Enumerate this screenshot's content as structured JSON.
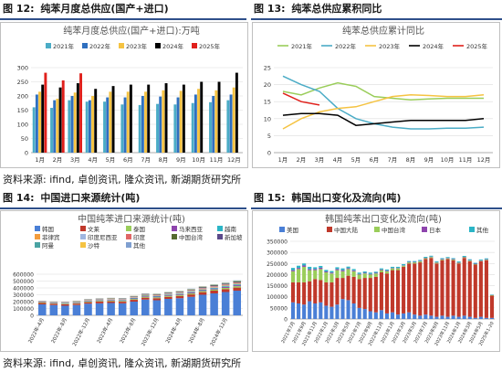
{
  "panels": {
    "p12": {
      "label": "图 12:",
      "title": "纯苯月度总供应(国产+进口)"
    },
    "p13": {
      "label": "图 13:",
      "title": "纯苯总供应累积同比"
    },
    "p14": {
      "label": "图 14:",
      "title": "中国进口来源统计(吨)"
    },
    "p15": {
      "label": "图 15:",
      "title": "韩国出口变化及流向(吨)"
    }
  },
  "source_note_top": "资料来源: ifind, 卓创资讯, 隆众资讯, 新湖期货研究所",
  "source_note_bottom": "资料来源: ifind, 卓创资讯, 隆众资讯, 新湖期货研究所",
  "chart_data": [
    {
      "id": "c12",
      "type": "bar",
      "title": "纯苯月度总供应(国产+进口):万吨",
      "categories": [
        "1月",
        "2月",
        "3月",
        "4月",
        "5月",
        "6月",
        "7月",
        "8月",
        "9月",
        "10月",
        "11月",
        "12月"
      ],
      "ylim": [
        0,
        300
      ],
      "yticks": [
        0,
        50,
        100,
        150,
        200,
        250,
        300
      ],
      "grid": true,
      "legend_position": "top",
      "series": [
        {
          "name": "2021年",
          "color": "#4bacc6",
          "values": [
            160,
            158,
            185,
            180,
            180,
            170,
            168,
            172,
            170,
            175,
            178,
            185
          ]
        },
        {
          "name": "2022年",
          "color": "#2f6fbf",
          "values": [
            205,
            185,
            200,
            185,
            195,
            195,
            200,
            198,
            195,
            205,
            200,
            205
          ]
        },
        {
          "name": "2023年",
          "color": "#f5c342",
          "values": [
            215,
            190,
            212,
            200,
            215,
            215,
            215,
            220,
            218,
            225,
            220,
            230
          ]
        },
        {
          "name": "2024年",
          "color": "#000000",
          "values": [
            240,
            230,
            245,
            225,
            235,
            240,
            240,
            245,
            240,
            250,
            250,
            282
          ]
        },
        {
          "name": "2025年",
          "color": "#e0201b",
          "values": [
            282,
            255,
            280,
            null,
            null,
            null,
            null,
            null,
            null,
            null,
            null,
            null
          ]
        }
      ]
    },
    {
      "id": "c13",
      "type": "line",
      "title": "纯苯总供应累计同比",
      "categories": [
        "1月",
        "2月",
        "3月",
        "4月",
        "5月",
        "6月",
        "7月",
        "8月",
        "9月",
        "10月",
        "11月",
        "12月"
      ],
      "ylim": [
        0,
        25
      ],
      "yticks": [
        0,
        5,
        10,
        15,
        20,
        25
      ],
      "grid": true,
      "legend_position": "top",
      "series": [
        {
          "name": "2021年",
          "color": "#9acd5a",
          "values": [
            18,
            17,
            19,
            20.5,
            19.5,
            16.5,
            16,
            15.5,
            15.8,
            16,
            16,
            16
          ]
        },
        {
          "name": "2022年",
          "color": "#4bacc6",
          "values": [
            22.5,
            20,
            18,
            13,
            10,
            8.5,
            7.5,
            7,
            7,
            7.2,
            7.2,
            7.5
          ]
        },
        {
          "name": "2023年",
          "color": "#f5c342",
          "values": [
            7,
            10,
            12,
            13,
            13.5,
            15,
            16.5,
            17,
            16.8,
            16.5,
            16.5,
            17
          ]
        },
        {
          "name": "2024年",
          "color": "#000000",
          "values": [
            11,
            11.5,
            11.5,
            11,
            8,
            8.5,
            9,
            9.5,
            9.5,
            9.5,
            9.5,
            10
          ]
        },
        {
          "name": "2025年",
          "color": "#e0201b",
          "values": [
            17.5,
            15,
            14,
            null,
            null,
            null,
            null,
            null,
            null,
            null,
            null,
            null
          ]
        }
      ]
    },
    {
      "id": "c14",
      "type": "bar",
      "stacked": true,
      "title": "中国纯苯进口来源统计(吨)",
      "categories": [
        "2022年4月",
        "2022年6月",
        "2022年8月",
        "2022年10月",
        "2022年12月",
        "2023年2月",
        "2023年4月",
        "2023年6月",
        "2023年8月",
        "2023年10月",
        "2023年12月",
        "2024年2月",
        "2024年4月",
        "2024年6月",
        "2024年8月",
        "2024年10月",
        "2024年12月",
        "2025年2月"
      ],
      "tick_labels": [
        "2022年-4月",
        "2022年-8月",
        "2022年-12月",
        "2023年-4月",
        "2023年-8月",
        "2023年-12月",
        "2024年-4月",
        "2024年-8月",
        "2024年-12月"
      ],
      "ylim": [
        0,
        600000
      ],
      "yticks": [
        0,
        100000,
        200000,
        300000,
        400000,
        500000,
        600000
      ],
      "grid": true,
      "legend_position": "top",
      "series": [
        {
          "name": "韩国",
          "color": "#4a7fd6",
          "values": [
            160000,
            150000,
            140000,
            150000,
            170000,
            175000,
            180000,
            175000,
            200000,
            230000,
            220000,
            240000,
            250000,
            270000,
            300000,
            320000,
            340000,
            360000
          ]
        },
        {
          "name": "文莱",
          "color": "#c0392b",
          "values": [
            20000,
            20000,
            22000,
            20000,
            22000,
            25000,
            25000,
            24000,
            26000,
            28000,
            30000,
            30000,
            32000,
            35000,
            38000,
            40000,
            42000,
            45000
          ]
        },
        {
          "name": "泰国",
          "color": "#9acd5a",
          "values": [
            8000,
            8000,
            9000,
            9000,
            10000,
            10000,
            10000,
            11000,
            12000,
            12000,
            13000,
            14000,
            15000,
            16000,
            17000,
            18000,
            19000,
            20000
          ]
        },
        {
          "name": "马来西亚",
          "color": "#8e44ad",
          "values": [
            5000,
            6000,
            6000,
            7000,
            7000,
            8000,
            8000,
            8000,
            9000,
            9000,
            10000,
            10000,
            11000,
            12000,
            12000,
            13000,
            13000,
            14000
          ]
        },
        {
          "name": "越南",
          "color": "#2bb5c6",
          "values": [
            4000,
            4000,
            5000,
            5000,
            6000,
            6000,
            6000,
            7000,
            7000,
            8000,
            8000,
            9000,
            9000,
            10000,
            10000,
            11000,
            11000,
            12000
          ]
        },
        {
          "name": "菲律宾",
          "color": "#f39c3d",
          "values": [
            3000,
            3000,
            3000,
            4000,
            4000,
            4000,
            5000,
            5000,
            5000,
            6000,
            6000,
            6000,
            7000,
            7000,
            8000,
            8000,
            9000,
            9000
          ]
        },
        {
          "name": "印度尼西亚",
          "color": "#9fb6e0",
          "values": [
            3000,
            3000,
            4000,
            4000,
            4000,
            5000,
            5000,
            5000,
            6000,
            6000,
            6000,
            7000,
            7000,
            8000,
            8000,
            9000,
            9000,
            10000
          ]
        },
        {
          "name": "印度",
          "color": "#e06666",
          "values": [
            2000,
            2000,
            3000,
            3000,
            3000,
            4000,
            4000,
            4000,
            5000,
            5000,
            5000,
            6000,
            6000,
            7000,
            7000,
            8000,
            8000,
            9000
          ]
        },
        {
          "name": "中国台湾",
          "color": "#556b2f",
          "values": [
            2000,
            2000,
            2000,
            3000,
            3000,
            3000,
            3000,
            4000,
            4000,
            4000,
            5000,
            5000,
            5000,
            6000,
            6000,
            7000,
            7000,
            8000
          ]
        },
        {
          "name": "新加坡",
          "color": "#5b4a8a",
          "values": [
            2000,
            2000,
            2000,
            2000,
            3000,
            3000,
            3000,
            3000,
            4000,
            4000,
            4000,
            5000,
            5000,
            5000,
            6000,
            6000,
            7000,
            7000
          ]
        },
        {
          "name": "阿曼",
          "color": "#4aa3a3",
          "values": [
            1000,
            1000,
            2000,
            2000,
            2000,
            2000,
            3000,
            3000,
            3000,
            3000,
            4000,
            4000,
            4000,
            5000,
            5000,
            5000,
            6000,
            6000
          ]
        },
        {
          "name": "沙特",
          "color": "#f5c342",
          "values": [
            1000,
            1000,
            1000,
            2000,
            2000,
            2000,
            2000,
            2000,
            3000,
            3000,
            3000,
            3000,
            4000,
            4000,
            4000,
            5000,
            5000,
            5000
          ]
        },
        {
          "name": "其他",
          "color": "#7f9fd0",
          "values": [
            1000,
            1000,
            1000,
            1000,
            2000,
            2000,
            2000,
            2000,
            2000,
            3000,
            3000,
            3000,
            3000,
            4000,
            4000,
            4000,
            5000,
            5000
          ]
        }
      ]
    },
    {
      "id": "c15",
      "type": "bar",
      "stacked": true,
      "title": "韩国纯苯出口变化及流向(吨)",
      "categories": [
        "2021年7月",
        "2021年8月",
        "2021年9月",
        "2021年10月",
        "2021年11月",
        "2021年12月",
        "2022年1月",
        "2022年2月",
        "2022年3月",
        "2022年4月",
        "2022年5月",
        "2022年6月",
        "2022年7月",
        "2022年8月",
        "2022年9月",
        "2022年10月",
        "2022年11月",
        "2022年12月",
        "2023年1月",
        "2023年2月",
        "2023年3月",
        "2023年4月",
        "2023年5月",
        "2023年6月",
        "2023年7月",
        "2023年8月",
        "2023年9月",
        "2023年10月",
        "2023年11月",
        "2023年12月",
        "2024年1月",
        "2024年2月",
        "2024年3月",
        "2024年4月",
        "2024年5月",
        "2024年6月",
        "2025年1-20"
      ],
      "tick_labels": [
        "2021年7月",
        "2021年9月",
        "2021年11月",
        "2022年1月",
        "2022年3月",
        "2022年5月",
        "2022年7月",
        "2022年9月",
        "2022年11月",
        "2023年1月",
        "2023年3月",
        "2023年5月",
        "2023年7月",
        "2023年9月",
        "2023年11月",
        "2024年1月",
        "2024年3月",
        "2024年5月",
        "2025年1-20"
      ],
      "ylim": [
        0,
        350000
      ],
      "yticks": [
        0,
        50000,
        100000,
        150000,
        200000,
        250000,
        300000,
        350000
      ],
      "grid": true,
      "legend_position": "top",
      "series": [
        {
          "name": "美国",
          "color": "#4a7fd6",
          "values": [
            75000,
            70000,
            65000,
            80000,
            70000,
            75000,
            60000,
            55000,
            65000,
            90000,
            85000,
            70000,
            50000,
            45000,
            35000,
            30000,
            40000,
            25000,
            30000,
            20000,
            25000,
            30000,
            20000,
            15000,
            20000,
            15000,
            10000,
            15000,
            10000,
            15000,
            10000,
            15000,
            10000,
            5000,
            10000,
            5000,
            5000
          ]
        },
        {
          "name": "中国大陆",
          "color": "#c0392b",
          "values": [
            90000,
            95000,
            100000,
            90000,
            110000,
            100000,
            105000,
            110000,
            120000,
            95000,
            110000,
            120000,
            130000,
            140000,
            150000,
            160000,
            170000,
            180000,
            190000,
            200000,
            210000,
            220000,
            230000,
            240000,
            250000,
            260000,
            240000,
            250000,
            260000,
            250000,
            240000,
            260000,
            250000,
            240000,
            250000,
            260000,
            100000
          ]
        },
        {
          "name": "中国台湾",
          "color": "#9acd5a",
          "values": [
            50000,
            60000,
            70000,
            50000,
            40000,
            50000,
            45000,
            40000,
            35000,
            30000,
            30000,
            25000,
            20000,
            20000,
            15000,
            15000,
            10000,
            10000,
            8000,
            8000,
            5000,
            5000,
            5000,
            5000,
            4000,
            4000,
            4000,
            3000,
            3000,
            3000,
            3000,
            3000,
            3000,
            2000,
            2000,
            2000,
            2000
          ]
        },
        {
          "name": "日本",
          "color": "#8e44ad",
          "values": [
            5000,
            5000,
            6000,
            5000,
            5000,
            6000,
            4000,
            4000,
            5000,
            5000,
            4000,
            4000,
            3000,
            3000,
            3000,
            3000,
            3000,
            3000,
            2000,
            2000,
            2000,
            2000,
            2000,
            2000,
            2000,
            2000,
            2000,
            2000,
            2000,
            2000,
            2000,
            2000,
            2000,
            2000,
            2000,
            2000,
            1000
          ]
        },
        {
          "name": "其他",
          "color": "#2bb5c6",
          "values": [
            10000,
            10000,
            9000,
            10000,
            8000,
            8000,
            7000,
            7000,
            8000,
            8000,
            7000,
            6000,
            6000,
            6000,
            6000,
            5000,
            5000,
            5000,
            5000,
            5000,
            5000,
            4000,
            4000,
            4000,
            4000,
            4000,
            4000,
            4000,
            4000,
            4000,
            4000,
            4000,
            4000,
            4000,
            4000,
            4000,
            2000
          ]
        }
      ]
    }
  ]
}
